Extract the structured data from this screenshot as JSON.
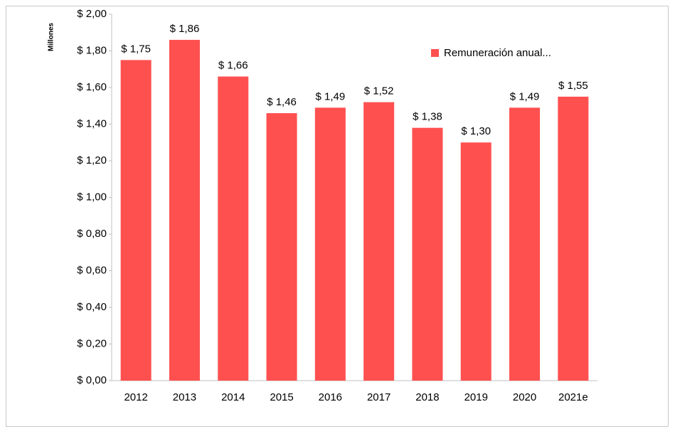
{
  "chart_data": {
    "type": "bar",
    "y_axis_label": "Millones",
    "categories": [
      "2012",
      "2013",
      "2014",
      "2015",
      "2016",
      "2017",
      "2018",
      "2019",
      "2020",
      "2021e"
    ],
    "series": [
      {
        "name": "Remuneración anual...",
        "color": "#ff5050",
        "values": [
          1.75,
          1.86,
          1.66,
          1.46,
          1.49,
          1.52,
          1.38,
          1.3,
          1.49,
          1.55
        ],
        "value_labels": [
          "$ 1,75",
          "$ 1,86",
          "$ 1,66",
          "$ 1,46",
          "$ 1,49",
          "$ 1,52",
          "$ 1,38",
          "$ 1,30",
          "$ 1,49",
          "$ 1,55"
        ]
      }
    ],
    "ylim": [
      0,
      2
    ],
    "yticks": [
      {
        "value": 0,
        "label": "$ 0,00"
      },
      {
        "value": 0.2,
        "label": "$ 0,20"
      },
      {
        "value": 0.4,
        "label": "$ 0,40"
      },
      {
        "value": 0.6,
        "label": "$ 0,60"
      },
      {
        "value": 0.8,
        "label": "$ 0,80"
      },
      {
        "value": 1.0,
        "label": "$ 1,00"
      },
      {
        "value": 1.2,
        "label": "$ 1,20"
      },
      {
        "value": 1.4,
        "label": "$ 1,40"
      },
      {
        "value": 1.6,
        "label": "$ 1,60"
      },
      {
        "value": 1.8,
        "label": "$ 1,80"
      },
      {
        "value": 2.0,
        "label": "$ 2,00"
      }
    ],
    "grid": false,
    "legend": "upper right"
  }
}
